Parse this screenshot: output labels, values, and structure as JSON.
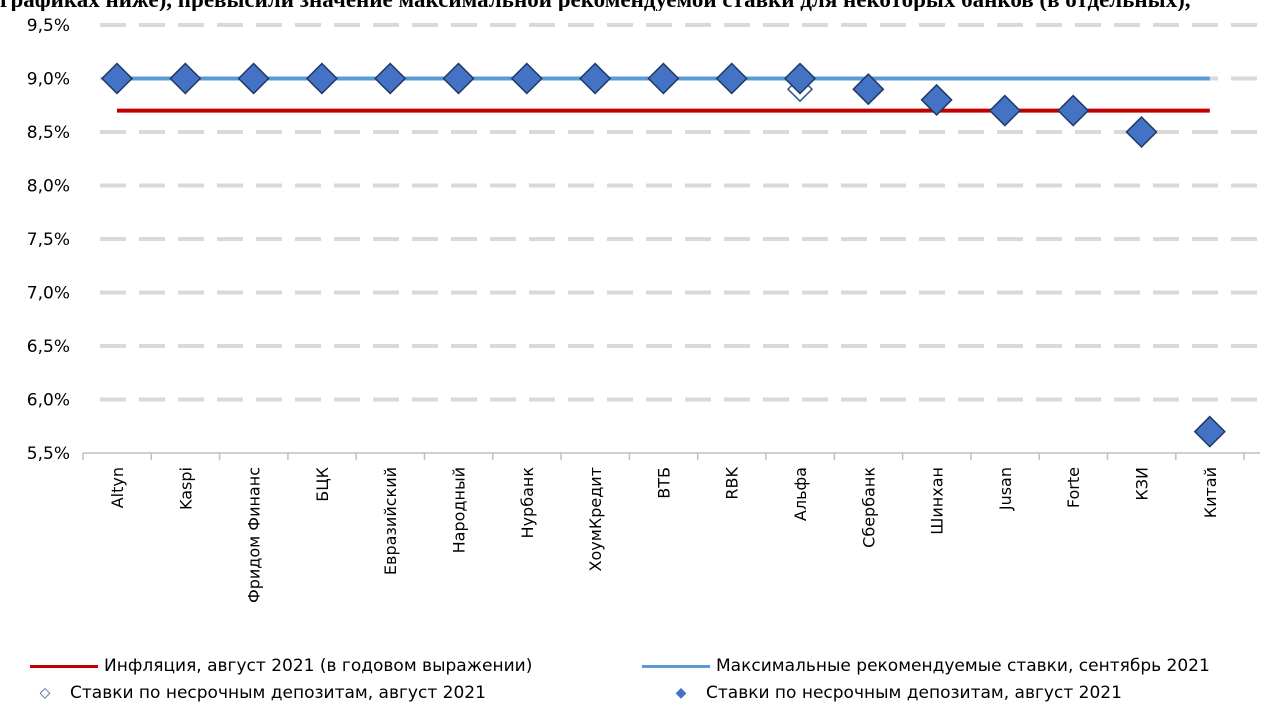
{
  "header": {
    "cut_title": "графиках ниже), превысили значение максимальной рекомендуемой ставки для некоторых банков (в отдельных),"
  },
  "chart_data": {
    "type": "line",
    "categories": [
      "Altyn",
      "Kaspi",
      "Фридом Финанс",
      "БЦК",
      "Евразийский",
      "Народный",
      "Нурбанк",
      "ХоумКредит",
      "ВТБ",
      "RBK",
      "Альфа",
      "Сбербанк",
      "Шинхан",
      "Jusan",
      "Forte",
      "КЗИ",
      "Китай"
    ],
    "ylim": [
      5.5,
      9.5
    ],
    "y_ticks": [
      "5,5%",
      "6,0%",
      "6,5%",
      "7,0%",
      "7,5%",
      "8,0%",
      "8,5%",
      "9,0%",
      "9,5%"
    ],
    "grid": true,
    "legend_position": "bottom",
    "series": [
      {
        "name": "Инфляция, август 2021 (в годовом выражении)",
        "kind": "line",
        "color": "#C00000",
        "values": [
          8.7,
          8.7,
          8.7,
          8.7,
          8.7,
          8.7,
          8.7,
          8.7,
          8.7,
          8.7,
          8.7,
          8.7,
          8.7,
          8.7,
          8.7,
          8.7,
          8.7
        ]
      },
      {
        "name": "Максимальные рекомендуемые ставки,  сентябрь 2021",
        "kind": "line",
        "color": "#5B9BD5",
        "values": [
          9.0,
          9.0,
          9.0,
          9.0,
          9.0,
          9.0,
          9.0,
          9.0,
          9.0,
          9.0,
          9.0,
          9.0,
          9.0,
          9.0,
          9.0,
          9.0,
          9.0
        ]
      },
      {
        "name": "Ставки по несрочным депозитам, август 2021",
        "kind": "hollow-diamond",
        "color": "#2F5597",
        "values": [
          null,
          null,
          null,
          null,
          null,
          null,
          null,
          null,
          null,
          null,
          8.9,
          null,
          null,
          null,
          null,
          null,
          null
        ]
      },
      {
        "name": "Ставки по несрочным депозитам, август 2021",
        "kind": "filled-diamond",
        "color": "#4472C4",
        "values": [
          9.0,
          9.0,
          9.0,
          9.0,
          9.0,
          9.0,
          9.0,
          9.0,
          9.0,
          9.0,
          9.0,
          8.9,
          8.8,
          8.7,
          8.7,
          8.5,
          5.7
        ]
      }
    ]
  }
}
